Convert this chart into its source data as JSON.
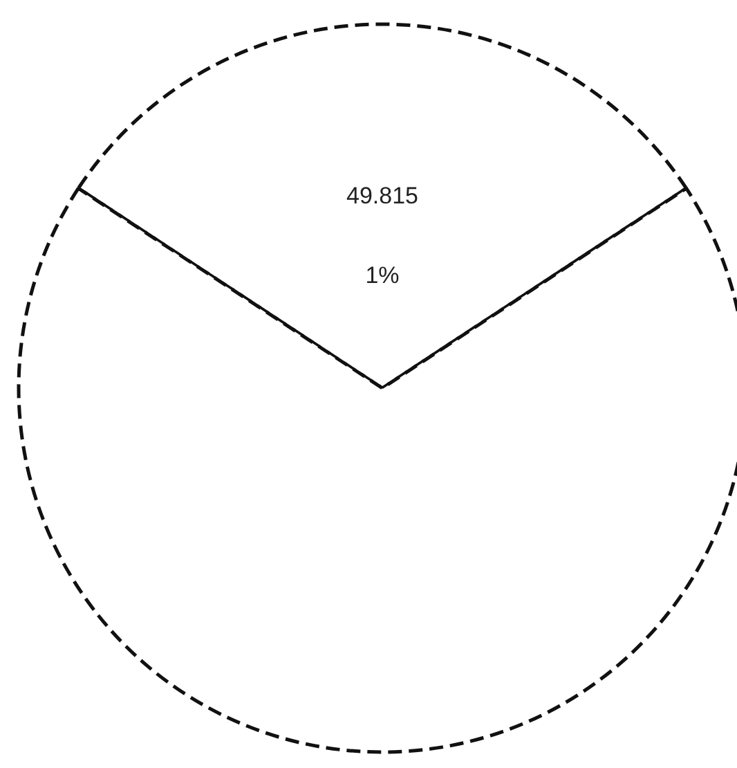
{
  "chart_data": {
    "type": "pie",
    "categories": [
      null,
      null
    ],
    "values": [
      31.5,
      68.5
    ],
    "colors": [
      "#ffffff",
      "#ffffff"
    ],
    "annotations": [
      "49.815",
      "1%"
    ],
    "line_style": "dashed"
  }
}
